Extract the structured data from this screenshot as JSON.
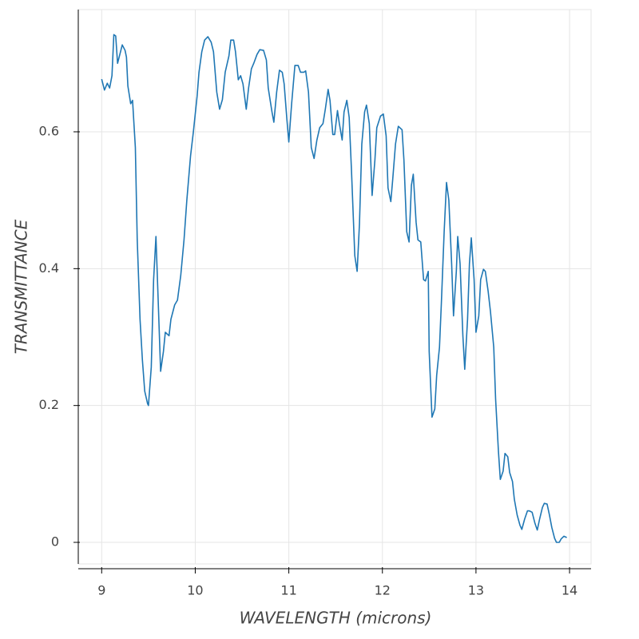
{
  "chart_data": {
    "type": "line",
    "x_label": "WAVELENGTH (microns)",
    "y_label": "TRANSMITTANCE",
    "x": [
      9.0,
      9.03,
      9.06,
      9.085,
      9.11,
      9.13,
      9.15,
      9.17,
      9.196,
      9.22,
      9.25,
      9.265,
      9.28,
      9.31,
      9.33,
      9.36,
      9.38,
      9.41,
      9.435,
      9.46,
      9.49,
      9.5,
      9.53,
      9.555,
      9.58,
      9.605,
      9.63,
      9.66,
      9.68,
      9.72,
      9.74,
      9.78,
      9.81,
      9.845,
      9.88,
      9.91,
      9.95,
      9.98,
      10.02,
      10.04,
      10.07,
      10.1,
      10.135,
      10.17,
      10.195,
      10.23,
      10.26,
      10.29,
      10.32,
      10.36,
      10.38,
      10.41,
      10.43,
      10.46,
      10.485,
      10.51,
      10.545,
      10.57,
      10.6,
      10.625,
      10.66,
      10.69,
      10.73,
      10.76,
      10.78,
      10.82,
      10.84,
      10.87,
      10.9,
      10.93,
      10.95,
      10.98,
      11.0,
      11.03,
      11.065,
      11.1,
      11.125,
      11.16,
      11.18,
      11.21,
      11.24,
      11.27,
      11.3,
      11.33,
      11.365,
      11.39,
      11.42,
      11.44,
      11.47,
      11.49,
      11.52,
      11.54,
      11.57,
      11.59,
      11.62,
      11.645,
      11.67,
      11.705,
      11.73,
      11.755,
      11.78,
      11.81,
      11.83,
      11.86,
      11.89,
      11.92,
      11.94,
      11.98,
      12.01,
      12.04,
      12.06,
      12.09,
      12.11,
      12.14,
      12.17,
      12.21,
      12.23,
      12.26,
      12.285,
      12.31,
      12.33,
      12.36,
      12.38,
      12.41,
      12.44,
      12.46,
      12.49,
      12.5,
      12.53,
      12.56,
      12.58,
      12.61,
      12.63,
      12.66,
      12.685,
      12.71,
      12.74,
      12.76,
      12.79,
      12.805,
      12.83,
      12.86,
      12.88,
      12.91,
      12.93,
      12.95,
      12.98,
      13.0,
      13.03,
      13.05,
      13.08,
      13.1,
      13.13,
      13.155,
      13.19,
      13.21,
      13.24,
      13.26,
      13.29,
      13.31,
      13.34,
      13.36,
      13.39,
      13.41,
      13.44,
      13.47,
      13.49,
      13.52,
      13.55,
      13.57,
      13.6,
      13.63,
      13.655,
      13.68,
      13.71,
      13.73,
      13.76,
      13.785,
      13.81,
      13.84,
      13.86,
      13.89,
      13.91,
      13.94,
      13.97
    ],
    "series": [
      {
        "color": "#1f77b4",
        "values": [
          0.677,
          0.661,
          0.671,
          0.664,
          0.682,
          0.742,
          0.74,
          0.7,
          0.714,
          0.727,
          0.719,
          0.709,
          0.667,
          0.641,
          0.646,
          0.577,
          0.442,
          0.326,
          0.267,
          0.221,
          0.203,
          0.2,
          0.256,
          0.384,
          0.447,
          0.349,
          0.25,
          0.279,
          0.307,
          0.302,
          0.326,
          0.347,
          0.354,
          0.39,
          0.442,
          0.5,
          0.565,
          0.6,
          0.652,
          0.687,
          0.717,
          0.734,
          0.739,
          0.731,
          0.717,
          0.658,
          0.633,
          0.647,
          0.687,
          0.711,
          0.734,
          0.734,
          0.717,
          0.676,
          0.682,
          0.67,
          0.633,
          0.664,
          0.692,
          0.7,
          0.713,
          0.72,
          0.719,
          0.705,
          0.664,
          0.629,
          0.614,
          0.658,
          0.69,
          0.687,
          0.67,
          0.617,
          0.585,
          0.641,
          0.697,
          0.697,
          0.687,
          0.687,
          0.689,
          0.658,
          0.577,
          0.561,
          0.588,
          0.606,
          0.612,
          0.633,
          0.662,
          0.646,
          0.596,
          0.596,
          0.631,
          0.612,
          0.588,
          0.629,
          0.646,
          0.621,
          0.542,
          0.419,
          0.396,
          0.466,
          0.582,
          0.629,
          0.639,
          0.612,
          0.507,
          0.559,
          0.606,
          0.623,
          0.626,
          0.594,
          0.518,
          0.498,
          0.53,
          0.582,
          0.608,
          0.603,
          0.559,
          0.454,
          0.439,
          0.522,
          0.538,
          0.468,
          0.442,
          0.439,
          0.384,
          0.382,
          0.396,
          0.279,
          0.183,
          0.195,
          0.244,
          0.285,
          0.349,
          0.454,
          0.526,
          0.5,
          0.407,
          0.331,
          0.396,
          0.447,
          0.407,
          0.302,
          0.253,
          0.326,
          0.407,
          0.445,
          0.384,
          0.307,
          0.331,
          0.384,
          0.399,
          0.396,
          0.367,
          0.337,
          0.285,
          0.209,
          0.133,
          0.092,
          0.104,
          0.13,
          0.125,
          0.102,
          0.089,
          0.063,
          0.04,
          0.025,
          0.019,
          0.034,
          0.046,
          0.046,
          0.044,
          0.028,
          0.018,
          0.034,
          0.051,
          0.057,
          0.056,
          0.04,
          0.022,
          0.006,
          0.0,
          0.0,
          0.005,
          0.009,
          0.007
        ]
      }
    ],
    "xlim": [
      8.75,
      14.23
    ],
    "ylim": [
      -0.0315,
      0.7786
    ],
    "xticks": [
      9,
      10,
      11,
      12,
      13,
      14
    ],
    "yticks": [
      0,
      0.2,
      0.4,
      0.6
    ],
    "grid": true
  }
}
